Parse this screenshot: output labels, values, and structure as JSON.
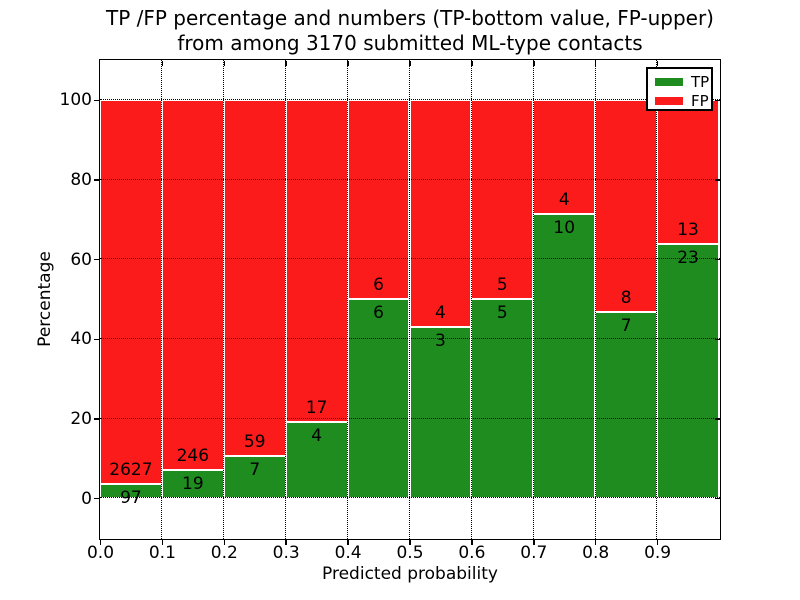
{
  "figure": {
    "background": "#ffffff",
    "text_color": "#000000"
  },
  "chart_data": {
    "type": "bar",
    "stacked": true,
    "title_line1": "TP /FP percentage and numbers (TP-bottom value, FP-upper)",
    "title_line2": "from among 3170 submitted ML-type contacts",
    "xlabel": "Predicted probability",
    "ylabel": "Percentage",
    "x_tick_labels": [
      "0.0",
      "0.1",
      "0.2",
      "0.3",
      "0.4",
      "0.5",
      "0.6",
      "0.7",
      "0.8",
      "0.9"
    ],
    "y_tick_values": [
      0,
      20,
      40,
      60,
      80,
      100
    ],
    "xlim": [
      0.0,
      1.0
    ],
    "ylim": [
      -10,
      110
    ],
    "grid": "dotted",
    "legend_position": "upper right",
    "legend": [
      {
        "label": "TP",
        "color": "#1e8c1e"
      },
      {
        "label": "FP",
        "color": "#fb1b1b"
      }
    ],
    "bar_semantics": "green bottom segment = TP percentage of bin total (0-100), red upper segment = FP remainder; labels show raw counts with FP above TP",
    "bins": [
      {
        "range": "0.0-0.1",
        "tp": 97,
        "fp": 2627
      },
      {
        "range": "0.1-0.2",
        "tp": 19,
        "fp": 246
      },
      {
        "range": "0.2-0.3",
        "tp": 7,
        "fp": 59
      },
      {
        "range": "0.3-0.4",
        "tp": 4,
        "fp": 17
      },
      {
        "range": "0.4-0.5",
        "tp": 6,
        "fp": 6
      },
      {
        "range": "0.5-0.6",
        "tp": 3,
        "fp": 4
      },
      {
        "range": "0.6-0.7",
        "tp": 5,
        "fp": 5
      },
      {
        "range": "0.7-0.8",
        "tp": 10,
        "fp": 4
      },
      {
        "range": "0.8-0.9",
        "tp": 7,
        "fp": 8
      },
      {
        "range": "0.9-1.0",
        "tp": 23,
        "fp": 13
      }
    ]
  }
}
